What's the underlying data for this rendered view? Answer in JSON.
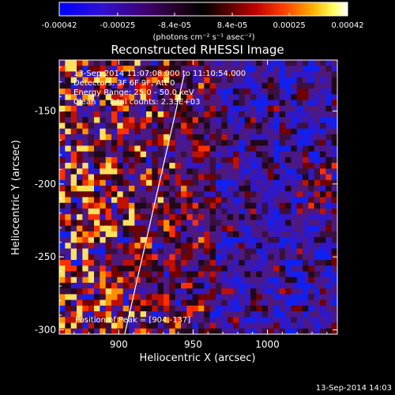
{
  "colorbar": {
    "ticks": [
      "-0.00042",
      "-0.00025",
      "-8.4e-05",
      "8.4e-05",
      "0.00025",
      "0.00042"
    ],
    "tick_values": [
      -0.00042,
      -0.00025,
      -8.4e-05,
      8.4e-05,
      0.00025,
      0.00042
    ],
    "range": [
      -0.00042,
      0.00042
    ],
    "unit_label": "(photons cm⁻² s⁻¹ asec⁻²)",
    "colors": [
      "#0000ff",
      "#4010c0",
      "#400070",
      "#000000",
      "#800000",
      "#ff2000",
      "#ffa000",
      "#ffff80",
      "#ffffff"
    ]
  },
  "chart_data": {
    "type": "heatmap",
    "title": "Reconstructed RHESSI Image",
    "xlabel": "Heliocentric X (arcsec)",
    "ylabel": "Heliocentric Y (arcsec)",
    "xlim": [
      860,
      1047
    ],
    "ylim": [
      -303,
      -115
    ],
    "xticks": [
      900,
      950,
      1000
    ],
    "yticks": [
      -150,
      -200,
      -250,
      -300
    ],
    "limb_line": {
      "x": [
        904,
        944
      ],
      "y": [
        -303,
        -125
      ],
      "color": "#ffffff"
    },
    "grid_size": [
      48,
      48
    ]
  },
  "info": {
    "line1": "13-Sep-2014 11:07:08.000 to 11:10:54.000",
    "line2": "Detectors: 3F 6F 9F, Att 0",
    "line3": "Energy Range: 25.0 - 50.0 keV",
    "line4": "Clean     Total counts: 2.33E+03"
  },
  "peak_label": "Position of Peak = [904,-137]",
  "timestamp": "13-Sep-2014 14:03"
}
